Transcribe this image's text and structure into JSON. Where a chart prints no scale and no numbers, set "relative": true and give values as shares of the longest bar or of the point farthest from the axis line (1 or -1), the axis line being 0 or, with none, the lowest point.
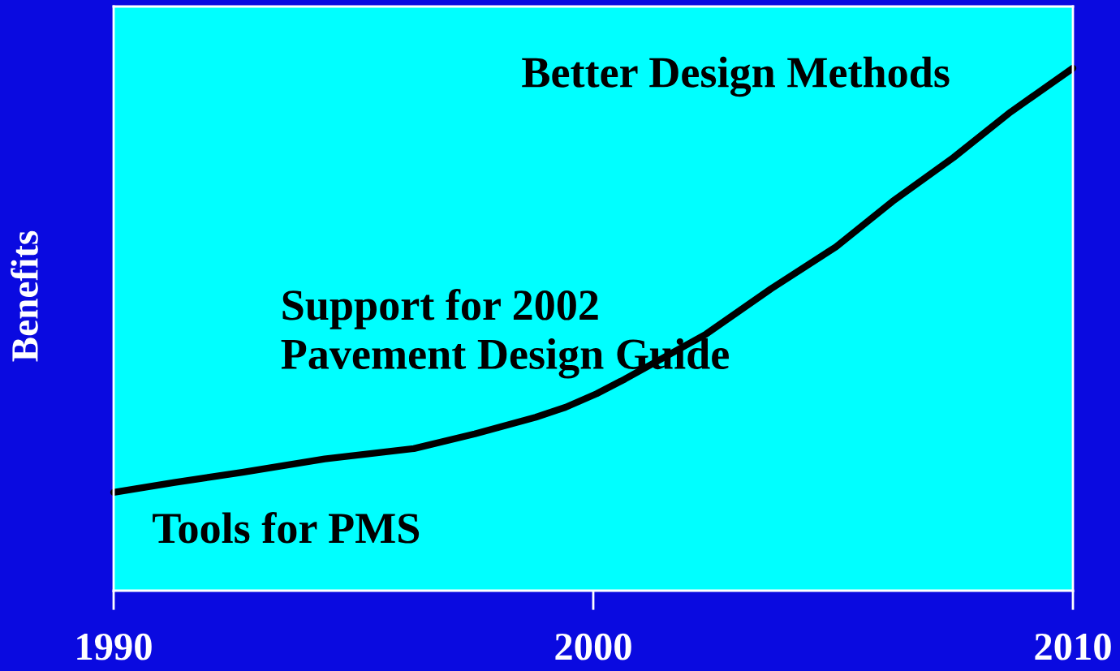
{
  "chart_data": {
    "type": "line",
    "ylabel": "Benefits",
    "relative": true,
    "x": [
      1990,
      1991.27,
      1992.71,
      1994.4,
      1996.26,
      1997.53,
      1998.8,
      1999.42,
      2000.07,
      2000.66,
      2002.35,
      2003.71,
      2005.06,
      2006.24,
      2007.51,
      2008.7,
      2010
    ],
    "series": [
      {
        "color": "#000000",
        "values": [
          0.188,
          0.207,
          0.227,
          0.252,
          0.272,
          0.3,
          0.332,
          0.351,
          0.377,
          0.405,
          0.491,
          0.578,
          0.658,
          0.745,
          0.829,
          0.916,
          1.0
        ]
      }
    ],
    "xlim": [
      1990,
      2010
    ],
    "xticks": [
      1990,
      2000,
      2010
    ],
    "annotations": [
      "Better Design Methods",
      "Support for 2002\nPavement Design Guide",
      "Tools for PMS"
    ],
    "grid": false,
    "marker": "none",
    "line_style": "solid"
  }
}
